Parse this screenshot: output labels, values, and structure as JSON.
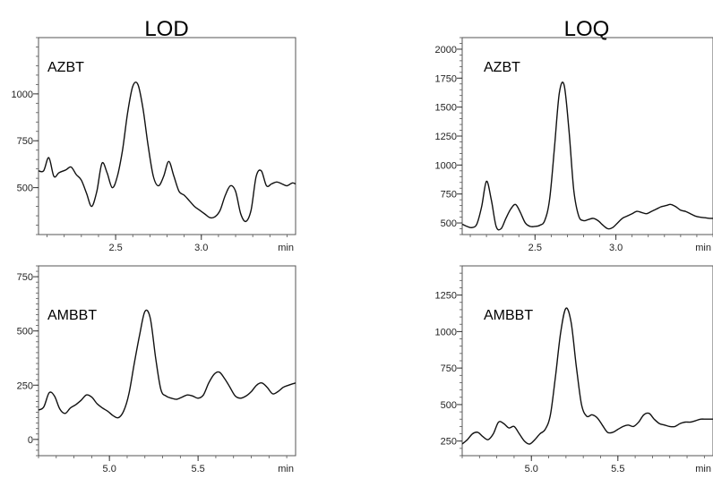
{
  "columns": [
    {
      "title": "LOD"
    },
    {
      "title": "LOQ"
    }
  ],
  "chart_data": [
    {
      "type": "line",
      "label": "AZBT",
      "xlabel": "min",
      "xlim": [
        2.05,
        3.55
      ],
      "ylim": [
        250,
        1300
      ],
      "xticks": [
        "2.5",
        "3.0"
      ],
      "yticks": [
        "500",
        "750",
        "1000"
      ],
      "x": [
        2.05,
        2.08,
        2.11,
        2.14,
        2.17,
        2.21,
        2.24,
        2.27,
        2.3,
        2.33,
        2.36,
        2.39,
        2.42,
        2.45,
        2.48,
        2.51,
        2.54,
        2.57,
        2.6,
        2.63,
        2.66,
        2.69,
        2.72,
        2.75,
        2.78,
        2.81,
        2.84,
        2.87,
        2.9,
        2.93,
        2.96,
        2.99,
        3.02,
        3.05,
        3.08,
        3.11,
        3.14,
        3.17,
        3.2,
        3.23,
        3.26,
        3.29,
        3.32,
        3.35,
        3.38,
        3.41,
        3.44,
        3.47,
        3.5,
        3.53,
        3.55
      ],
      "y": [
        590,
        590,
        660,
        560,
        580,
        595,
        610,
        570,
        540,
        470,
        400,
        480,
        630,
        580,
        500,
        560,
        700,
        900,
        1040,
        1050,
        920,
        720,
        560,
        510,
        560,
        640,
        560,
        480,
        460,
        430,
        400,
        380,
        360,
        340,
        345,
        380,
        460,
        510,
        480,
        360,
        320,
        380,
        560,
        590,
        510,
        520,
        530,
        520,
        510,
        525,
        520
      ]
    },
    {
      "type": "line",
      "label": "AMBBT",
      "xlabel": "min",
      "xlim": [
        4.6,
        6.05
      ],
      "ylim": [
        -75,
        800
      ],
      "xticks": [
        "5.0",
        "5.5"
      ],
      "yticks": [
        "0",
        "250",
        "500",
        "750"
      ],
      "x": [
        4.6,
        4.63,
        4.66,
        4.69,
        4.72,
        4.75,
        4.78,
        4.81,
        4.84,
        4.87,
        4.9,
        4.93,
        4.96,
        4.99,
        5.02,
        5.05,
        5.08,
        5.11,
        5.14,
        5.17,
        5.2,
        5.23,
        5.26,
        5.29,
        5.32,
        5.35,
        5.38,
        5.41,
        5.44,
        5.47,
        5.5,
        5.53,
        5.56,
        5.59,
        5.62,
        5.65,
        5.68,
        5.71,
        5.74,
        5.77,
        5.8,
        5.83,
        5.86,
        5.89,
        5.92,
        5.95,
        5.98,
        6.01,
        6.05
      ],
      "y": [
        135,
        150,
        215,
        200,
        140,
        120,
        145,
        160,
        180,
        205,
        195,
        165,
        145,
        130,
        110,
        100,
        130,
        210,
        350,
        480,
        590,
        560,
        380,
        230,
        200,
        190,
        185,
        195,
        205,
        200,
        190,
        205,
        260,
        300,
        310,
        280,
        240,
        200,
        190,
        200,
        220,
        250,
        260,
        240,
        210,
        220,
        240,
        250,
        260
      ]
    },
    {
      "type": "line",
      "label": "AZBT",
      "xlabel": "min",
      "xlim": [
        2.05,
        3.6
      ],
      "ylim": [
        400,
        2100
      ],
      "xticks": [
        "2.5",
        "3.0"
      ],
      "yticks": [
        "500",
        "750",
        "1000",
        "1250",
        "1500",
        "1750",
        "2000"
      ],
      "x": [
        2.05,
        2.08,
        2.11,
        2.14,
        2.17,
        2.2,
        2.23,
        2.26,
        2.29,
        2.32,
        2.35,
        2.38,
        2.41,
        2.44,
        2.47,
        2.5,
        2.53,
        2.56,
        2.59,
        2.62,
        2.65,
        2.68,
        2.71,
        2.74,
        2.77,
        2.8,
        2.83,
        2.86,
        2.89,
        2.92,
        2.95,
        2.98,
        3.01,
        3.04,
        3.07,
        3.1,
        3.13,
        3.16,
        3.19,
        3.22,
        3.25,
        3.28,
        3.31,
        3.34,
        3.37,
        3.4,
        3.43,
        3.46,
        3.49,
        3.52,
        3.55,
        3.58,
        3.6
      ],
      "y": [
        490,
        470,
        460,
        490,
        640,
        860,
        700,
        470,
        450,
        540,
        620,
        660,
        590,
        500,
        470,
        470,
        480,
        520,
        700,
        1150,
        1620,
        1690,
        1300,
        780,
        560,
        520,
        530,
        540,
        520,
        480,
        450,
        460,
        500,
        540,
        560,
        580,
        600,
        590,
        580,
        600,
        620,
        640,
        650,
        660,
        640,
        610,
        600,
        580,
        560,
        550,
        545,
        540,
        540
      ]
    },
    {
      "type": "line",
      "label": "AMBBT",
      "xlabel": "min",
      "xlim": [
        4.6,
        6.05
      ],
      "ylim": [
        150,
        1450
      ],
      "xticks": [
        "5.0",
        "5.5"
      ],
      "yticks": [
        "250",
        "500",
        "750",
        "1000",
        "1250"
      ],
      "x": [
        4.6,
        4.63,
        4.66,
        4.69,
        4.72,
        4.75,
        4.78,
        4.81,
        4.84,
        4.87,
        4.9,
        4.93,
        4.96,
        4.99,
        5.02,
        5.05,
        5.08,
        5.11,
        5.14,
        5.17,
        5.2,
        5.23,
        5.26,
        5.29,
        5.32,
        5.35,
        5.38,
        5.41,
        5.44,
        5.47,
        5.5,
        5.53,
        5.56,
        5.59,
        5.62,
        5.65,
        5.68,
        5.71,
        5.74,
        5.77,
        5.8,
        5.83,
        5.86,
        5.89,
        5.92,
        5.95,
        5.98,
        6.01,
        6.05
      ],
      "y": [
        230,
        260,
        300,
        310,
        280,
        260,
        300,
        380,
        370,
        340,
        350,
        300,
        250,
        230,
        260,
        300,
        330,
        430,
        700,
        1000,
        1160,
        1060,
        760,
        500,
        420,
        430,
        410,
        360,
        310,
        310,
        330,
        350,
        360,
        350,
        380,
        430,
        440,
        400,
        370,
        360,
        350,
        350,
        370,
        380,
        380,
        390,
        400,
        400,
        400
      ]
    }
  ]
}
